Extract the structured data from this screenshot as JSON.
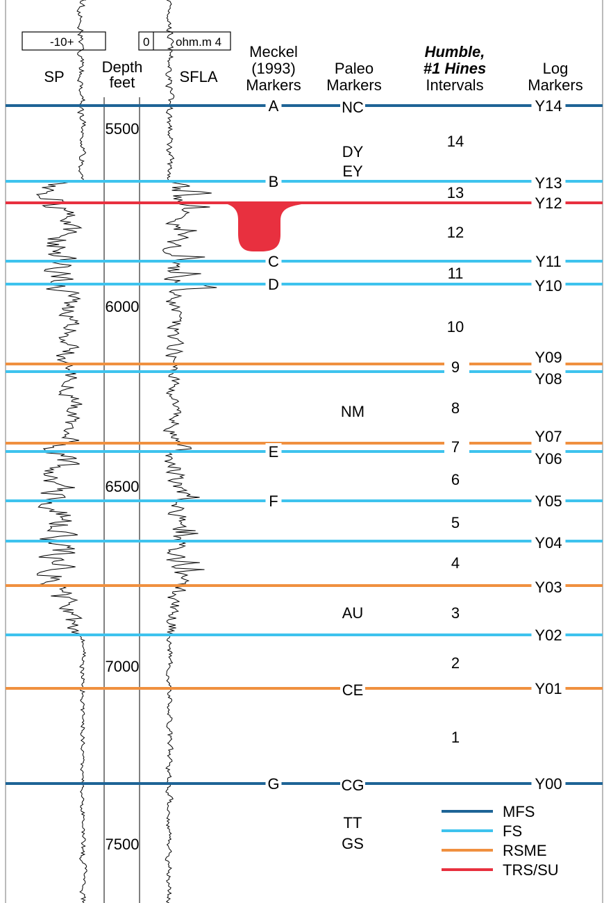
{
  "colors": {
    "MFS": "#1e6496",
    "FS": "#3ec3ee",
    "RSME": "#f0903f",
    "TRS/SU": "#e8303f",
    "log_line": "#000000",
    "frame": "#777777"
  },
  "headers": {
    "sp_scale": "-10+",
    "sfla_scale_zero": "0",
    "sfla_scale_rest": "ohm.m 4",
    "sp": "SP",
    "depth_line1": "Depth",
    "depth_line2": "feet",
    "sfla": "SFLA",
    "meckel_line1": "Meckel",
    "meckel_line2": "(1993)",
    "meckel_line3": "Markers",
    "paleo_line1": "Paleo",
    "paleo_line2": "Markers",
    "humble_line1": "Humble,",
    "humble_line2": "#1 Hines",
    "humble_line3": "Intervals",
    "log_line1": "Log",
    "log_line2": "Markers"
  },
  "depth_labels": [
    "5500",
    "6000",
    "6500",
    "7000",
    "7500"
  ],
  "surfaces": [
    {
      "type": "MFS",
      "meckel": "A",
      "paleo": "NC",
      "log": "Y14"
    },
    {
      "type": "FS",
      "meckel": "B",
      "paleo": "",
      "log": "Y13"
    },
    {
      "type": "TRS/SU",
      "meckel": "",
      "paleo": "",
      "log": "Y12"
    },
    {
      "type": "FS",
      "meckel": "C",
      "paleo": "",
      "log": "Y11"
    },
    {
      "type": "FS",
      "meckel": "D",
      "paleo": "",
      "log": "Y10"
    },
    {
      "type": "RSME",
      "meckel": "",
      "paleo": "",
      "log": "Y09"
    },
    {
      "type": "FS",
      "meckel": "",
      "paleo": "",
      "log": "Y08"
    },
    {
      "type": "RSME",
      "meckel": "",
      "paleo": "",
      "log": "Y07"
    },
    {
      "type": "FS",
      "meckel": "E",
      "paleo": "",
      "log": "Y06"
    },
    {
      "type": "FS",
      "meckel": "F",
      "paleo": "",
      "log": "Y05"
    },
    {
      "type": "FS",
      "meckel": "",
      "paleo": "",
      "log": "Y04"
    },
    {
      "type": "RSME",
      "meckel": "",
      "paleo": "",
      "log": "Y03"
    },
    {
      "type": "FS",
      "meckel": "",
      "paleo": "",
      "log": "Y02"
    },
    {
      "type": "RSME",
      "meckel": "",
      "paleo": "CE",
      "log": "Y01"
    },
    {
      "type": "MFS",
      "meckel": "G",
      "paleo": "CG",
      "log": "Y00"
    }
  ],
  "intervals": [
    "14",
    "13",
    "12",
    "11",
    "10",
    "9",
    "8",
    "7",
    "6",
    "5",
    "4",
    "3",
    "2",
    "1"
  ],
  "paleo_markers_free": [
    "DY",
    "EY",
    "NM",
    "AU",
    "TT",
    "GS"
  ],
  "legend": [
    {
      "type": "MFS",
      "label": "MFS"
    },
    {
      "type": "FS",
      "label": "FS"
    },
    {
      "type": "RSME",
      "label": "RSME"
    },
    {
      "type": "TRS/SU",
      "label": "TRS/SU"
    }
  ]
}
